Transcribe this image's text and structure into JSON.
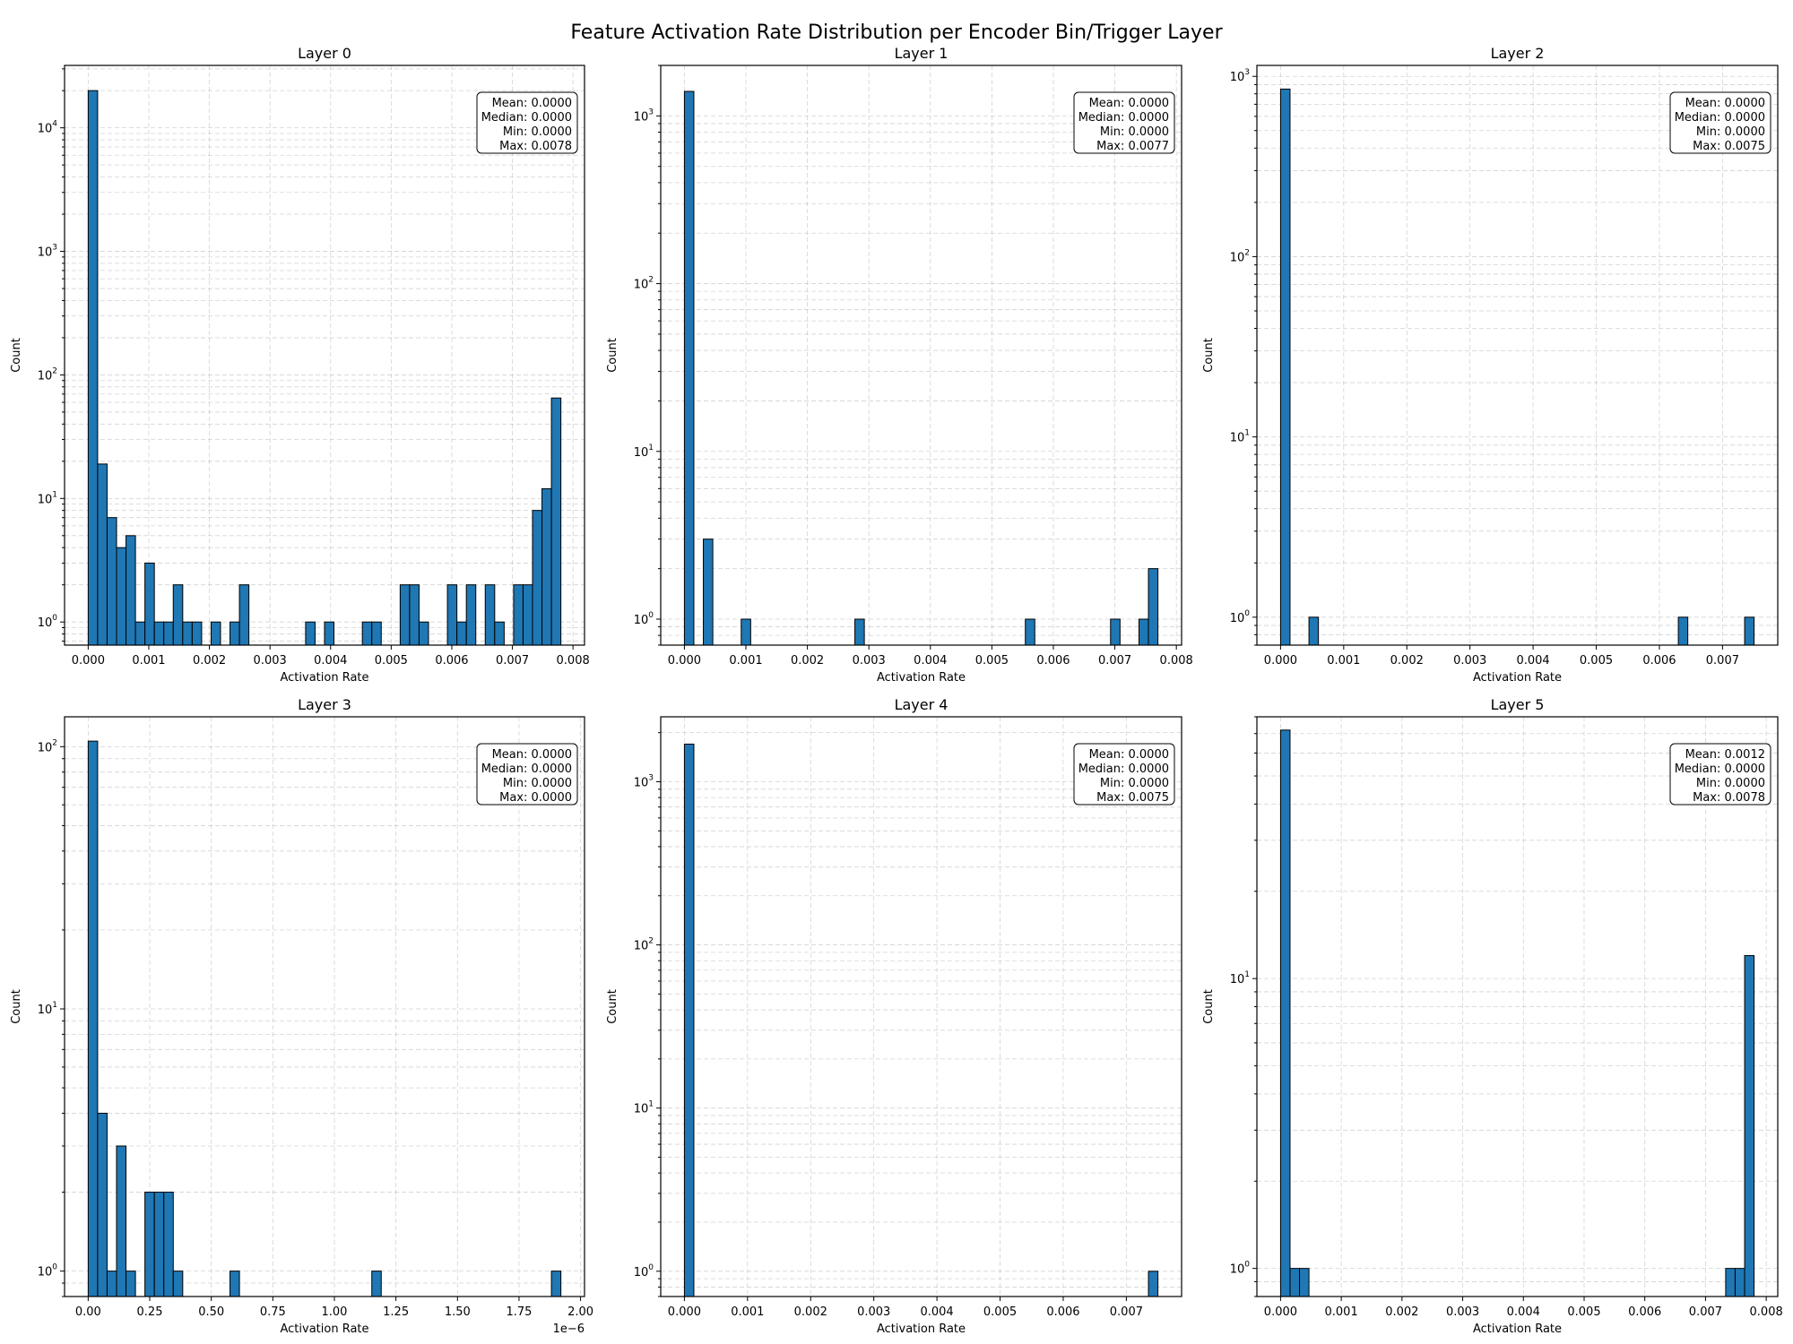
{
  "figure": {
    "title": "Feature Activation Rate Distribution per Encoder Bin/Trigger Layer"
  },
  "colors": {
    "bar": "#1f77b4",
    "edge": "#000000",
    "grid": "#b0b0b0"
  },
  "chart_data": [
    {
      "type": "bar",
      "title": "Layer 0",
      "xlabel": "Activation Rate",
      "ylabel": "Count",
      "yscale": "log",
      "xlim": [
        -0.00039,
        0.00819
      ],
      "ylim": [
        0.65,
        32000
      ],
      "bin_width": 0.000156,
      "xticks": [
        0,
        0.001,
        0.002,
        0.003,
        0.004,
        0.005,
        0.006,
        0.007,
        0.008
      ],
      "xtick_labels": [
        "0.000",
        "0.001",
        "0.002",
        "0.003",
        "0.004",
        "0.005",
        "0.006",
        "0.007",
        "0.008"
      ],
      "yticks": [
        1,
        10,
        100,
        1000,
        10000
      ],
      "ytick_labels": [
        "10^0",
        "10^1",
        "10^2",
        "10^3",
        "10^4"
      ],
      "bins": [
        {
          "x": 0.0,
          "count": 20000
        },
        {
          "x": 0.000156,
          "count": 19
        },
        {
          "x": 0.000312,
          "count": 7
        },
        {
          "x": 0.000468,
          "count": 4
        },
        {
          "x": 0.000624,
          "count": 5
        },
        {
          "x": 0.00078,
          "count": 1
        },
        {
          "x": 0.000936,
          "count": 3
        },
        {
          "x": 0.001092,
          "count": 1
        },
        {
          "x": 0.001248,
          "count": 1
        },
        {
          "x": 0.001404,
          "count": 2
        },
        {
          "x": 0.00156,
          "count": 1
        },
        {
          "x": 0.001716,
          "count": 1
        },
        {
          "x": 0.002028,
          "count": 1
        },
        {
          "x": 0.00234,
          "count": 1
        },
        {
          "x": 0.002496,
          "count": 2
        },
        {
          "x": 0.003588,
          "count": 1
        },
        {
          "x": 0.0039,
          "count": 1
        },
        {
          "x": 0.004524,
          "count": 1
        },
        {
          "x": 0.00468,
          "count": 1
        },
        {
          "x": 0.005148,
          "count": 2
        },
        {
          "x": 0.005304,
          "count": 2
        },
        {
          "x": 0.00546,
          "count": 1
        },
        {
          "x": 0.005928,
          "count": 2
        },
        {
          "x": 0.006084,
          "count": 1
        },
        {
          "x": 0.00624,
          "count": 2
        },
        {
          "x": 0.006552,
          "count": 2
        },
        {
          "x": 0.006708,
          "count": 1
        },
        {
          "x": 0.00702,
          "count": 2
        },
        {
          "x": 0.007176,
          "count": 2
        },
        {
          "x": 0.007332,
          "count": 8
        },
        {
          "x": 0.007488,
          "count": 12
        },
        {
          "x": 0.007644,
          "count": 65
        }
      ],
      "stats": [
        "Mean: 0.0000",
        "Median: 0.0000",
        "Min: 0.0000",
        "Max: 0.0078"
      ]
    },
    {
      "type": "bar",
      "title": "Layer 1",
      "xlabel": "Activation Rate",
      "ylabel": "Count",
      "yscale": "log",
      "xlim": [
        -0.000385,
        0.008085
      ],
      "ylim": [
        0.7,
        2000
      ],
      "bin_width": 0.000154,
      "xticks": [
        0,
        0.001,
        0.002,
        0.003,
        0.004,
        0.005,
        0.006,
        0.007,
        0.008
      ],
      "xtick_labels": [
        "0.000",
        "0.001",
        "0.002",
        "0.003",
        "0.004",
        "0.005",
        "0.006",
        "0.007",
        "0.008"
      ],
      "yticks": [
        1,
        10,
        100,
        1000
      ],
      "ytick_labels": [
        "10^0",
        "10^1",
        "10^2",
        "10^3"
      ],
      "bins": [
        {
          "x": 0.0,
          "count": 1400
        },
        {
          "x": 0.000308,
          "count": 3
        },
        {
          "x": 0.000924,
          "count": 1
        },
        {
          "x": 0.002772,
          "count": 1
        },
        {
          "x": 0.005544,
          "count": 1
        },
        {
          "x": 0.00693,
          "count": 1
        },
        {
          "x": 0.007392,
          "count": 1
        },
        {
          "x": 0.007546,
          "count": 2
        }
      ],
      "stats": [
        "Mean: 0.0000",
        "Median: 0.0000",
        "Min: 0.0000",
        "Max: 0.0077"
      ]
    },
    {
      "type": "bar",
      "title": "Layer 2",
      "xlabel": "Activation Rate",
      "ylabel": "Count",
      "yscale": "log",
      "xlim": [
        -0.000375,
        0.007875
      ],
      "ylim": [
        0.7,
        1150
      ],
      "bin_width": 0.00015,
      "xticks": [
        0,
        0.001,
        0.002,
        0.003,
        0.004,
        0.005,
        0.006,
        0.007
      ],
      "xtick_labels": [
        "0.000",
        "0.001",
        "0.002",
        "0.003",
        "0.004",
        "0.005",
        "0.006",
        "0.007"
      ],
      "yticks": [
        1,
        10,
        100,
        1000
      ],
      "ytick_labels": [
        "10^0",
        "10^1",
        "10^2",
        "10^3"
      ],
      "bins": [
        {
          "x": 0.0,
          "count": 850
        },
        {
          "x": 0.00045,
          "count": 1
        },
        {
          "x": 0.0063,
          "count": 1
        },
        {
          "x": 0.00735,
          "count": 1
        }
      ],
      "stats": [
        "Mean: 0.0000",
        "Median: 0.0000",
        "Min: 0.0000",
        "Max: 0.0075"
      ]
    },
    {
      "type": "bar",
      "title": "Layer 3",
      "xlabel": "Activation Rate",
      "ylabel": "Count",
      "yscale": "log",
      "x_scale_note": "1e−6",
      "xlim": [
        -0.096,
        2.016
      ],
      "ylim": [
        0.8,
        130
      ],
      "bin_width": 0.0384,
      "xticks": [
        0,
        0.25,
        0.5,
        0.75,
        1.0,
        1.25,
        1.5,
        1.75,
        2.0
      ],
      "xtick_labels": [
        "0.00",
        "0.25",
        "0.50",
        "0.75",
        "1.00",
        "1.25",
        "1.50",
        "1.75",
        "2.00"
      ],
      "yticks": [
        1,
        10,
        100
      ],
      "ytick_labels": [
        "10^0",
        "10^1",
        "10^2"
      ],
      "bins": [
        {
          "x": 0.0,
          "count": 105
        },
        {
          "x": 0.0384,
          "count": 4
        },
        {
          "x": 0.0768,
          "count": 1
        },
        {
          "x": 0.1152,
          "count": 3
        },
        {
          "x": 0.1536,
          "count": 1
        },
        {
          "x": 0.2304,
          "count": 2
        },
        {
          "x": 0.2688,
          "count": 2
        },
        {
          "x": 0.3072,
          "count": 2
        },
        {
          "x": 0.3456,
          "count": 1
        },
        {
          "x": 0.576,
          "count": 1
        },
        {
          "x": 1.152,
          "count": 1
        },
        {
          "x": 1.8816,
          "count": 1
        }
      ],
      "stats": [
        "Mean: 0.0000",
        "Median: 0.0000",
        "Min: 0.0000",
        "Max: 0.0000"
      ]
    },
    {
      "type": "bar",
      "title": "Layer 4",
      "xlabel": "Activation Rate",
      "ylabel": "Count",
      "yscale": "log",
      "xlim": [
        -0.000375,
        0.007875
      ],
      "ylim": [
        0.7,
        2500
      ],
      "bin_width": 0.00015,
      "xticks": [
        0,
        0.001,
        0.002,
        0.003,
        0.004,
        0.005,
        0.006,
        0.007
      ],
      "xtick_labels": [
        "0.000",
        "0.001",
        "0.002",
        "0.003",
        "0.004",
        "0.005",
        "0.006",
        "0.007"
      ],
      "yticks": [
        1,
        10,
        100,
        1000
      ],
      "ytick_labels": [
        "10^0",
        "10^1",
        "10^2",
        "10^3"
      ],
      "bins": [
        {
          "x": 0.0,
          "count": 1700
        },
        {
          "x": 0.00735,
          "count": 1
        }
      ],
      "stats": [
        "Mean: 0.0000",
        "Median: 0.0000",
        "Min: 0.0000",
        "Max: 0.0075"
      ]
    },
    {
      "type": "bar",
      "title": "Layer 5",
      "xlabel": "Activation Rate",
      "ylabel": "Count",
      "yscale": "log",
      "xlim": [
        -0.00039,
        0.00819
      ],
      "ylim": [
        0.8,
        80
      ],
      "bin_width": 0.000156,
      "xticks": [
        0,
        0.001,
        0.002,
        0.003,
        0.004,
        0.005,
        0.006,
        0.007,
        0.008
      ],
      "xtick_labels": [
        "0.000",
        "0.001",
        "0.002",
        "0.003",
        "0.004",
        "0.005",
        "0.006",
        "0.007",
        "0.008"
      ],
      "yticks": [
        1,
        10
      ],
      "ytick_labels": [
        "10^0",
        "10^1"
      ],
      "bins": [
        {
          "x": 0.0,
          "count": 72
        },
        {
          "x": 0.000156,
          "count": 1
        },
        {
          "x": 0.000312,
          "count": 1
        },
        {
          "x": 0.007332,
          "count": 1
        },
        {
          "x": 0.007488,
          "count": 1
        },
        {
          "x": 0.007644,
          "count": 12
        }
      ],
      "stats": [
        "Mean: 0.0012",
        "Median: 0.0000",
        "Min: 0.0000",
        "Max: 0.0078"
      ]
    }
  ]
}
